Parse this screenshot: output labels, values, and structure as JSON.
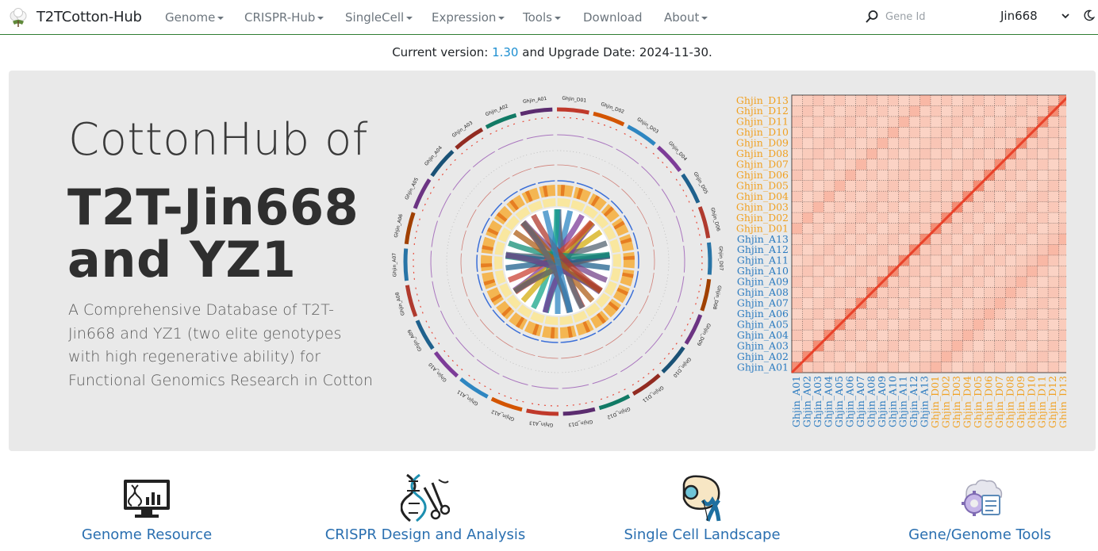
{
  "navbar": {
    "brand": "T2TCotton-Hub",
    "items": [
      {
        "label": "Genome",
        "dropdown": true
      },
      {
        "label": "CRISPR-Hub",
        "dropdown": true
      },
      {
        "label": "SingleCell",
        "dropdown": true
      },
      {
        "label": "Expression",
        "dropdown": true
      },
      {
        "label": "Tools",
        "dropdown": true
      },
      {
        "label": "Download",
        "dropdown": false
      },
      {
        "label": "About",
        "dropdown": true
      }
    ],
    "search": {
      "placeholder": "Gene Id",
      "icon": "search-icon"
    },
    "genome_select": "Jin668",
    "theme_icon": "moon-icon"
  },
  "version": {
    "prefix": "Current version: ",
    "number": "1.30",
    "middle": " and Upgrade Date: ",
    "date": "2024-11-30."
  },
  "hero": {
    "title_line1": "CottonHub of",
    "title_line2": "T2T-Jin668 and YZ1",
    "description": "A Comprehensive Database of T2T-Jin668 and YZ1 (two elite genotypes with high regenerative ability) for Functional Genomics Research in Cotton",
    "circos_labels": [
      "Ghjin_D01",
      "Ghjin_D02",
      "Ghjin_D03",
      "Ghjin_D04",
      "Ghjin_D05",
      "Ghjin_D06",
      "Ghjin_D07",
      "Ghjin_D08",
      "Ghjin_D09",
      "Ghjin_D10",
      "Ghjin_D11",
      "Ghjin_D12",
      "Ghjin_D13",
      "Ghjin_A13",
      "Ghjin_A12",
      "Ghjin_A11",
      "Ghjin_A10",
      "Ghjin_A09",
      "Ghjin_A08",
      "Ghjin_A07",
      "Ghjin_A06",
      "Ghjin_A05",
      "Ghjin_A04",
      "Ghjin_A03",
      "Ghjin_A02",
      "Ghjin_A01"
    ],
    "heatmap_labels": [
      "Ghjin_A01",
      "Ghjin_A02",
      "Ghjin_A03",
      "Ghjin_A04",
      "Ghjin_A05",
      "Ghjin_A06",
      "Ghjin_A07",
      "Ghjin_A08",
      "Ghjin_A09",
      "Ghjin_A10",
      "Ghjin_A11",
      "Ghjin_A12",
      "Ghjin_A13",
      "Ghjin_D01",
      "Ghjin_D02",
      "Ghjin_D03",
      "Ghjin_D04",
      "Ghjin_D05",
      "Ghjin_D06",
      "Ghjin_D07",
      "Ghjin_D08",
      "Ghjin_D09",
      "Ghjin_D10",
      "Ghjin_D11",
      "Ghjin_D12",
      "Ghjin_D13"
    ],
    "colors": {
      "a_subgenome": "#2b7bc0",
      "d_subgenome": "#f0a020",
      "heatmap_base": "#fde2d6",
      "heatmap_diag": "#e8422a"
    }
  },
  "features": [
    {
      "label": "Genome Resource",
      "icon": "genome-monitor-icon"
    },
    {
      "label": "CRISPR Design and Analysis",
      "icon": "dna-scissors-icon"
    },
    {
      "label": "Single Cell Landscape",
      "icon": "cell-chromosome-icon"
    },
    {
      "label": "Gene/Genome Tools",
      "icon": "gear-cloud-icon"
    }
  ]
}
